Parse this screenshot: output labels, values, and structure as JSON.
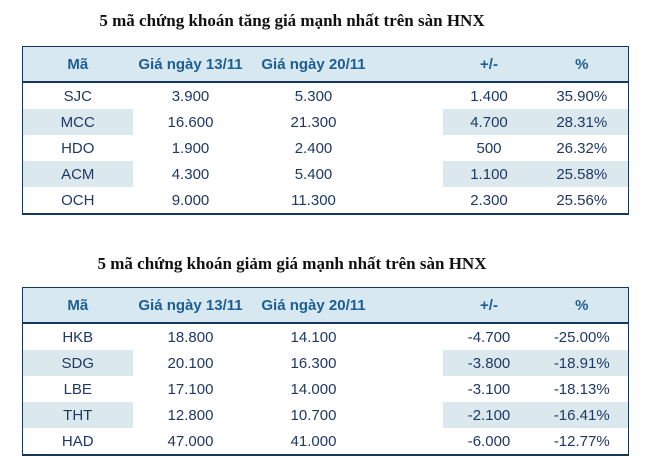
{
  "colors": {
    "header_bg": "#d7e8f1",
    "stripe_bg": "#dbe9ef",
    "header_text": "#1d5f93",
    "body_text": "#1f3864",
    "positive": "#27ae60",
    "negative": "#e8282a",
    "border": "#17365d"
  },
  "chart_data": [
    {
      "type": "table",
      "title": "5 mã chứng khoán tăng giá mạnh nhất trên sàn HNX",
      "trend": "up",
      "columns": [
        "Mã",
        "Giá ngày 13/11",
        "Giá ngày 20/11",
        "+/-",
        "%"
      ],
      "rows": [
        [
          "SJC",
          "3.900",
          "5.300",
          "1.400",
          "35.90%"
        ],
        [
          "MCC",
          "16.600",
          "21.300",
          "4.700",
          "28.31%"
        ],
        [
          "HDO",
          "1.900",
          "2.400",
          "500",
          "26.32%"
        ],
        [
          "ACM",
          "4.300",
          "5.400",
          "1.100",
          "25.58%"
        ],
        [
          "OCH",
          "9.000",
          "11.300",
          "2.300",
          "25.56%"
        ]
      ]
    },
    {
      "type": "table",
      "title": "5 mã chứng khoán giảm giá mạnh nhất trên sàn HNX",
      "trend": "down",
      "columns": [
        "Mã",
        "Giá ngày 13/11",
        "Giá ngày 20/11",
        "+/-",
        "%"
      ],
      "rows": [
        [
          "HKB",
          "18.800",
          "14.100",
          "-4.700",
          "-25.00%"
        ],
        [
          "SDG",
          "20.100",
          "16.300",
          "-3.800",
          "-18.91%"
        ],
        [
          "LBE",
          "17.100",
          "14.000",
          "-3.100",
          "-18.13%"
        ],
        [
          "THT",
          "12.800",
          "10.700",
          "-2.100",
          "-16.41%"
        ],
        [
          "HAD",
          "47.000",
          "41.000",
          "-6.000",
          "-12.77%"
        ]
      ]
    }
  ]
}
